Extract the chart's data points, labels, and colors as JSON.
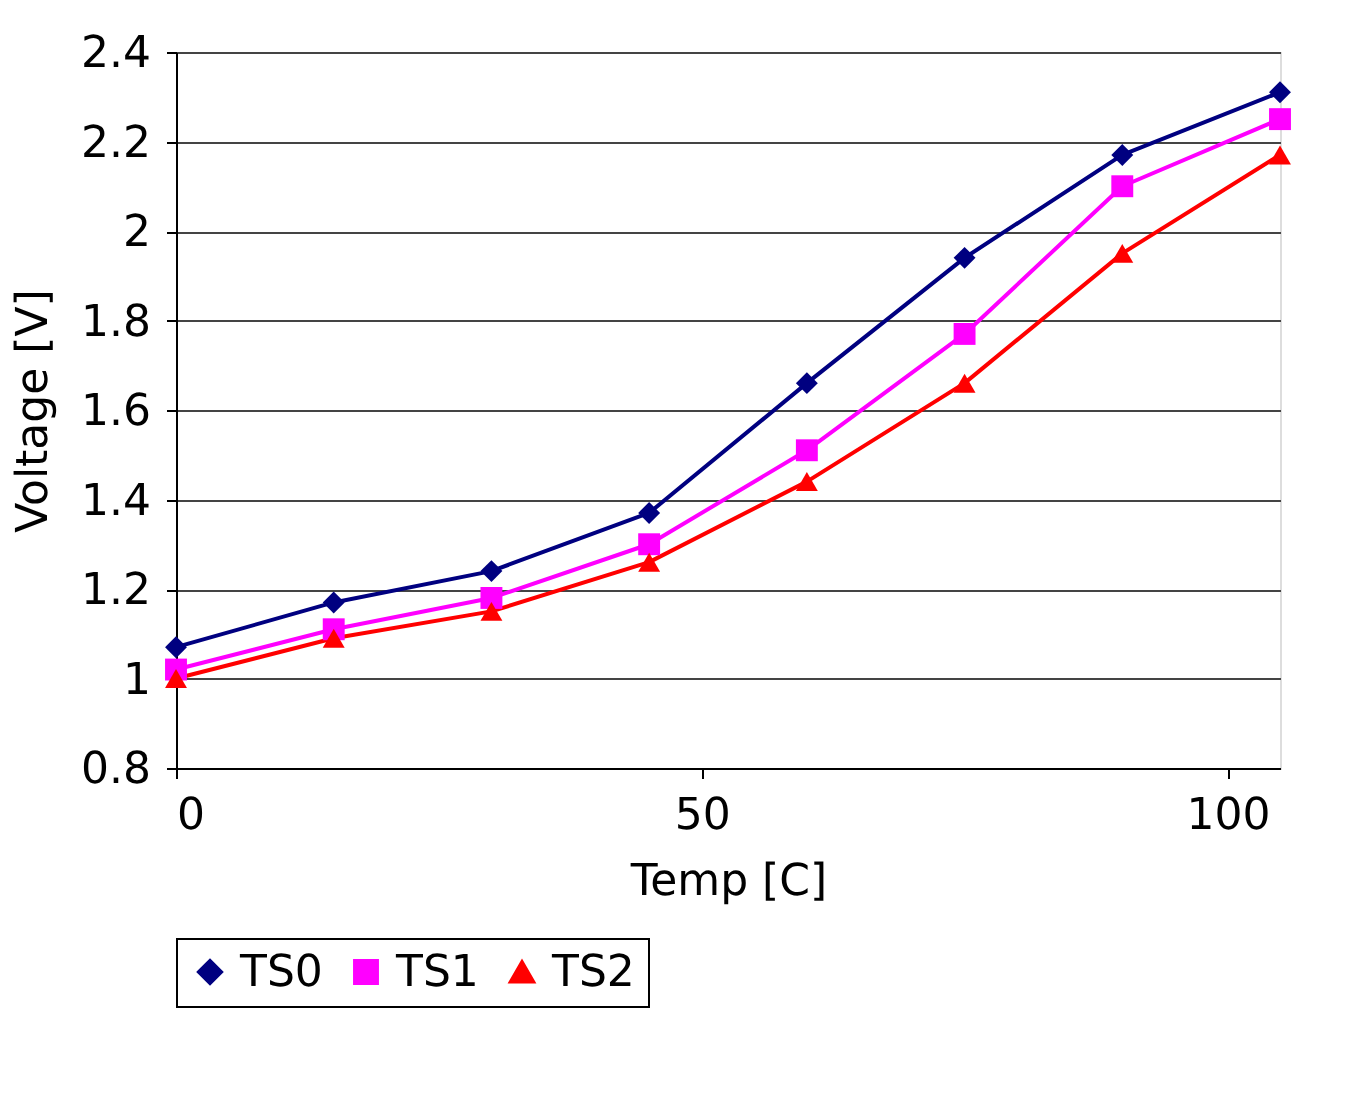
{
  "chart_data": {
    "type": "line",
    "xlabel": "Temp [C]",
    "ylabel": "Voltage [V]",
    "x": [
      0,
      15,
      30,
      45,
      60,
      75,
      90,
      105
    ],
    "series": [
      {
        "name": "TS0",
        "color": "#000080",
        "marker": "diamond",
        "values": [
          1.07,
          1.17,
          1.24,
          1.37,
          1.66,
          1.94,
          2.17,
          2.31
        ]
      },
      {
        "name": "TS1",
        "color": "#ff00ff",
        "marker": "square",
        "values": [
          1.02,
          1.11,
          1.18,
          1.3,
          1.51,
          1.77,
          2.1,
          2.25
        ]
      },
      {
        "name": "TS2",
        "color": "#ff0000",
        "marker": "triangle",
        "values": [
          1.0,
          1.09,
          1.15,
          1.26,
          1.44,
          1.66,
          1.95,
          2.17
        ]
      }
    ],
    "xlim": [
      0,
      105
    ],
    "xticks": [
      0,
      50,
      100
    ],
    "ylim": [
      0.8,
      2.4
    ],
    "yticks": [
      {
        "value": 0.8,
        "label": "0.8"
      },
      1,
      {
        "value": 1.2,
        "label": "1.2"
      },
      {
        "value": 1.4,
        "label": "1.4"
      },
      {
        "value": 1.6,
        "label": "1.6"
      },
      {
        "value": 1.8,
        "label": "1.8"
      },
      2,
      {
        "value": 2.2,
        "label": "2.2"
      },
      {
        "value": 2.4,
        "label": "2.4"
      }
    ],
    "grid": "y",
    "legend": "bottom",
    "line_style": "solid"
  }
}
